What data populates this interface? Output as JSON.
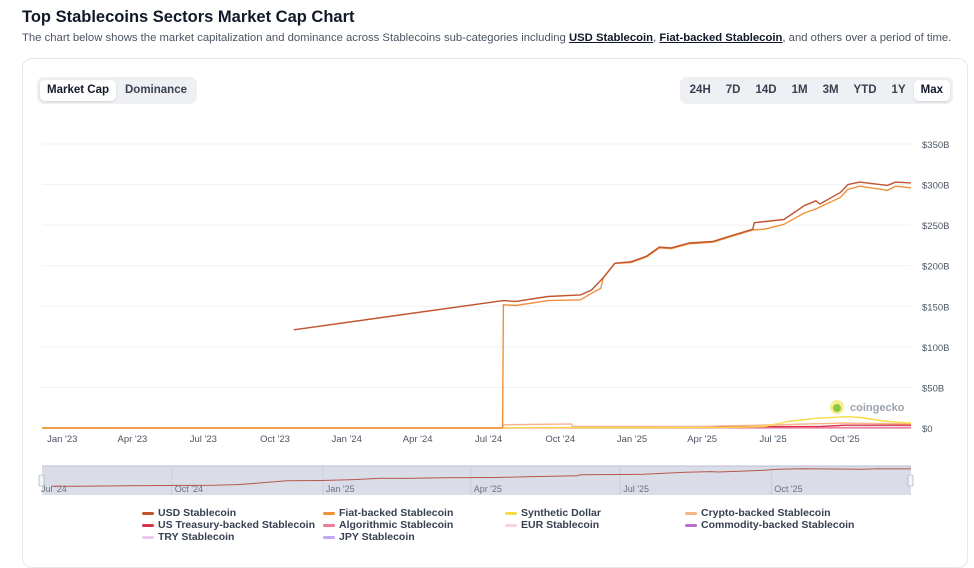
{
  "header": {
    "title": "Top Stablecoins Sectors Market Cap Chart",
    "subtitle_pre": "The chart below shows the market capitalization and dominance across Stablecoins sub-categories including ",
    "link1": "USD Stablecoin",
    "sep": ", ",
    "link2": "Fiat-backed Stablecoin",
    "subtitle_post": ", and others over a period of time."
  },
  "toggle": [
    {
      "label": "Market Cap",
      "active": true
    },
    {
      "label": "Dominance",
      "active": false
    }
  ],
  "ranges": [
    {
      "label": "24H"
    },
    {
      "label": "7D"
    },
    {
      "label": "14D"
    },
    {
      "label": "1M"
    },
    {
      "label": "3M"
    },
    {
      "label": "YTD"
    },
    {
      "label": "1Y"
    },
    {
      "label": "Max",
      "active": true
    }
  ],
  "watermark": "coingecko",
  "chart_data": {
    "type": "line",
    "title": "",
    "xlabel": "",
    "ylabel": "",
    "xlim": [
      "2022-12-06",
      "2025-12-25"
    ],
    "ylim": [
      0,
      350
    ],
    "grid": true,
    "legend": "bottom",
    "y_ticks": [
      {
        "v": 0,
        "label": "$0"
      },
      {
        "v": 50,
        "label": "$50B"
      },
      {
        "v": 100,
        "label": "$100B"
      },
      {
        "v": 150,
        "label": "$150B"
      },
      {
        "v": 200,
        "label": "$200B"
      },
      {
        "v": 250,
        "label": "$250B"
      },
      {
        "v": 300,
        "label": "$300B"
      },
      {
        "v": 350,
        "label": "$350B"
      }
    ],
    "x_ticks": [
      {
        "d": "2023-01-01",
        "label": "Jan '23"
      },
      {
        "d": "2023-04-01",
        "label": "Apr '23"
      },
      {
        "d": "2023-07-01",
        "label": "Jul '23"
      },
      {
        "d": "2023-10-01",
        "label": "Oct '23"
      },
      {
        "d": "2024-01-01",
        "label": "Jan '24"
      },
      {
        "d": "2024-04-01",
        "label": "Apr '24"
      },
      {
        "d": "2024-07-01",
        "label": "Jul '24"
      },
      {
        "d": "2024-10-01",
        "label": "Oct '24"
      },
      {
        "d": "2025-01-01",
        "label": "Jan '25"
      },
      {
        "d": "2025-04-01",
        "label": "Apr '25"
      },
      {
        "d": "2025-07-01",
        "label": "Jul '25"
      },
      {
        "d": "2025-10-01",
        "label": "Oct '25"
      }
    ],
    "series": [
      {
        "name": "USD Stablecoin",
        "color": "#c0532d",
        "points": [
          [
            "2023-10-25",
            121
          ],
          [
            "2024-07-20",
            157
          ],
          [
            "2024-08-05",
            156
          ],
          [
            "2024-09-15",
            162
          ],
          [
            "2024-10-27",
            164
          ],
          [
            "2024-11-10",
            170
          ],
          [
            "2024-11-25",
            185
          ],
          [
            "2024-12-10",
            203
          ],
          [
            "2024-12-31",
            205
          ],
          [
            "2025-01-20",
            212
          ],
          [
            "2025-02-05",
            223
          ],
          [
            "2025-02-20",
            222
          ],
          [
            "2025-03-15",
            228
          ],
          [
            "2025-04-15",
            230
          ],
          [
            "2025-05-05",
            236
          ],
          [
            "2025-06-05",
            245
          ],
          [
            "2025-06-07",
            253
          ],
          [
            "2025-07-15",
            257
          ],
          [
            "2025-08-10",
            274
          ],
          [
            "2025-08-25",
            280
          ],
          [
            "2025-08-30",
            276
          ],
          [
            "2025-09-25",
            290
          ],
          [
            "2025-10-05",
            300
          ],
          [
            "2025-10-20",
            303
          ],
          [
            "2025-11-25",
            299
          ],
          [
            "2025-12-05",
            303
          ],
          [
            "2025-12-25",
            302
          ]
        ]
      },
      {
        "name": "Fiat-backed Stablecoin",
        "color": "#f0913a",
        "points": [
          [
            "2022-12-06",
            0
          ],
          [
            "2024-07-19",
            0
          ],
          [
            "2024-07-20",
            152
          ],
          [
            "2024-08-05",
            151
          ],
          [
            "2024-09-15",
            157
          ],
          [
            "2024-10-27",
            158
          ],
          [
            "2024-11-10",
            166
          ],
          [
            "2024-11-22",
            172
          ],
          [
            "2024-11-25",
            185
          ],
          [
            "2024-12-10",
            203
          ],
          [
            "2024-12-31",
            204
          ],
          [
            "2025-01-20",
            211
          ],
          [
            "2025-02-05",
            222
          ],
          [
            "2025-02-20",
            221
          ],
          [
            "2025-03-15",
            227
          ],
          [
            "2025-04-15",
            229
          ],
          [
            "2025-05-05",
            235
          ],
          [
            "2025-06-05",
            244
          ],
          [
            "2025-06-20",
            245
          ],
          [
            "2025-07-15",
            251
          ],
          [
            "2025-08-10",
            265
          ],
          [
            "2025-08-25",
            270
          ],
          [
            "2025-09-25",
            284
          ],
          [
            "2025-10-05",
            294
          ],
          [
            "2025-10-20",
            298
          ],
          [
            "2025-11-25",
            293
          ],
          [
            "2025-12-05",
            298
          ],
          [
            "2025-12-25",
            296
          ]
        ]
      },
      {
        "name": "Synthetic Dollar",
        "color": "#f7dc4a",
        "points": [
          [
            "2022-12-06",
            0
          ],
          [
            "2025-05-01",
            0.5
          ],
          [
            "2025-06-20",
            2
          ],
          [
            "2025-07-20",
            8
          ],
          [
            "2025-08-25",
            12
          ],
          [
            "2025-10-05",
            14
          ],
          [
            "2025-10-20",
            13
          ],
          [
            "2025-11-25",
            8
          ],
          [
            "2025-12-25",
            6
          ]
        ]
      },
      {
        "name": "Crypto-backed Stablecoin",
        "color": "#f7b48a",
        "points": [
          [
            "2022-12-06",
            0
          ],
          [
            "2024-07-19",
            0
          ],
          [
            "2024-07-20",
            4
          ],
          [
            "2024-10-15",
            5
          ],
          [
            "2024-10-17",
            2
          ],
          [
            "2025-04-01",
            2
          ],
          [
            "2025-07-01",
            4
          ],
          [
            "2025-10-01",
            6
          ],
          [
            "2025-12-25",
            5
          ]
        ]
      },
      {
        "name": "US Treasury-backed Stablecoin",
        "color": "#d6334a",
        "points": [
          [
            "2022-12-06",
            0.3
          ],
          [
            "2025-04-10",
            0.5
          ],
          [
            "2025-04-11",
            1.5
          ],
          [
            "2025-09-01",
            2
          ],
          [
            "2025-10-01",
            3.5
          ],
          [
            "2025-12-25",
            3.5
          ]
        ]
      },
      {
        "name": "Algorithmic Stablecoin",
        "color": "#f07a92",
        "points": [
          [
            "2022-12-06",
            0.3
          ],
          [
            "2025-12-25",
            0.3
          ]
        ]
      },
      {
        "name": "EUR Stablecoin",
        "color": "#fbd1da",
        "points": [
          [
            "2022-12-06",
            0.2
          ],
          [
            "2025-12-25",
            0.5
          ]
        ]
      },
      {
        "name": "Commodity-backed Stablecoin",
        "color": "#b86fce",
        "points": [
          [
            "2022-12-06",
            0.2
          ],
          [
            "2025-12-25",
            0.6
          ]
        ]
      },
      {
        "name": "TRY Stablecoin",
        "color": "#ecc7ee",
        "points": [
          [
            "2022-12-06",
            0.1
          ],
          [
            "2025-12-25",
            0.1
          ]
        ]
      },
      {
        "name": "JPY Stablecoin",
        "color": "#c6a6f5",
        "points": [
          [
            "2022-12-06",
            0.1
          ],
          [
            "2025-12-25",
            0.1
          ]
        ]
      }
    ],
    "navigator": {
      "xlim": [
        "2024-07-14",
        "2025-12-25"
      ],
      "x_ticks": [
        {
          "d": "2024-07-01",
          "label": "Jul '24"
        },
        {
          "d": "2024-10-01",
          "label": "Oct '24"
        },
        {
          "d": "2025-01-01",
          "label": "Jan '25"
        },
        {
          "d": "2025-04-01",
          "label": "Apr '25"
        },
        {
          "d": "2025-07-01",
          "label": "Jul '25"
        },
        {
          "d": "2025-10-01",
          "label": "Oct '25"
        }
      ]
    }
  }
}
